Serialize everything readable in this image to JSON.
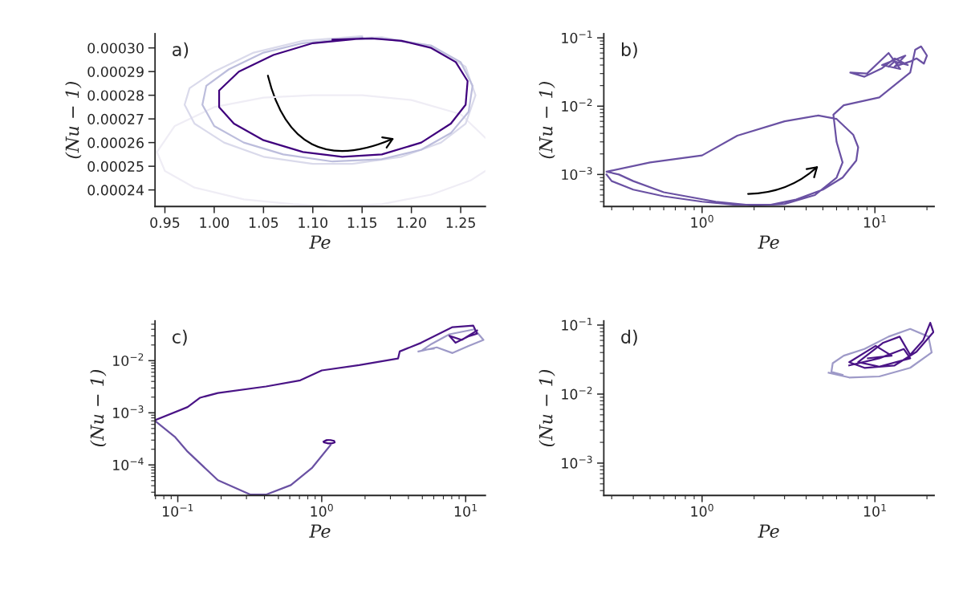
{
  "chart_data": [
    {
      "type": "line",
      "annotations": [
        "a)"
      ],
      "xlabel": "Pe",
      "ylabel": "(Nu − 1)",
      "xlim": [
        0.94,
        1.275
      ],
      "ylim": [
        0.000233,
        0.000306
      ],
      "xticks": [
        {
          "value": 0.95,
          "label": "0.95"
        },
        {
          "value": 1.0,
          "label": "1.00"
        },
        {
          "value": 1.05,
          "label": "1.05"
        },
        {
          "value": 1.1,
          "label": "1.10"
        },
        {
          "value": 1.15,
          "label": "1.15"
        },
        {
          "value": 1.2,
          "label": "1.20"
        },
        {
          "value": 1.25,
          "label": "1.25"
        }
      ],
      "yticks": [
        {
          "value": 0.00024,
          "label": "0.00024"
        },
        {
          "value": 0.00025,
          "label": "0.00025"
        },
        {
          "value": 0.00026,
          "label": "0.00026"
        },
        {
          "value": 0.00027,
          "label": "0.00027"
        },
        {
          "value": 0.00028,
          "label": "0.00028"
        },
        {
          "value": 0.00029,
          "label": "0.00029"
        },
        {
          "value": 0.0003,
          "label": "0.00030"
        }
      ],
      "series": [
        {
          "color": "#efedf5",
          "x": [
            1.275,
            1.25,
            1.2,
            1.15,
            1.1,
            1.05,
            1.0,
            0.96,
            0.942,
            0.95,
            0.98,
            1.03,
            1.08,
            1.12,
            1.17,
            1.22,
            1.26,
            1.275
          ],
          "values": [
            0.000262,
            0.000272,
            0.000278,
            0.00028,
            0.00028,
            0.000279,
            0.000275,
            0.000267,
            0.000256,
            0.000248,
            0.000241,
            0.000236,
            0.000234,
            0.000233,
            0.000234,
            0.000238,
            0.000244,
            0.000248
          ]
        },
        {
          "color": "#dadaeb",
          "x": [
            1.15,
            1.09,
            1.04,
            1.0,
            0.975,
            0.97,
            0.98,
            1.01,
            1.05,
            1.1,
            1.14,
            1.19,
            1.23,
            1.255,
            1.265,
            1.255,
            1.22,
            1.17,
            1.12
          ],
          "values": [
            0.000305,
            0.000303,
            0.000298,
            0.00029,
            0.000283,
            0.000276,
            0.000268,
            0.00026,
            0.000254,
            0.000251,
            0.000251,
            0.000254,
            0.00026,
            0.000268,
            0.00028,
            0.000292,
            0.000301,
            0.0003045,
            0.000304
          ]
        },
        {
          "color": "#bcbddc",
          "x": [
            1.15,
            1.09,
            1.05,
            1.015,
            0.992,
            0.988,
            1.0,
            1.03,
            1.07,
            1.12,
            1.17,
            1.21,
            1.24,
            1.258,
            1.262,
            1.25,
            1.22,
            1.17,
            1.12
          ],
          "values": [
            0.0003045,
            0.000302,
            0.000298,
            0.000291,
            0.000284,
            0.000276,
            0.000267,
            0.00026,
            0.000255,
            0.000252,
            0.000253,
            0.000257,
            0.000264,
            0.000273,
            0.000284,
            0.000294,
            0.000301,
            0.000304,
            0.0003035
          ]
        },
        {
          "color": "#3f007d",
          "x": [
            1.15,
            1.1,
            1.06,
            1.025,
            1.005,
            1.005,
            1.02,
            1.05,
            1.09,
            1.13,
            1.17,
            1.21,
            1.24,
            1.255,
            1.257,
            1.245,
            1.22,
            1.19,
            1.16,
            1.12
          ],
          "values": [
            0.000304,
            0.000302,
            0.000297,
            0.00029,
            0.000282,
            0.000275,
            0.000268,
            0.000261,
            0.000256,
            0.000254,
            0.000255,
            0.00026,
            0.000268,
            0.000276,
            0.000286,
            0.000294,
            0.0003,
            0.000303,
            0.000304,
            0.0003035
          ]
        }
      ]
    },
    {
      "type": "line",
      "annotations": [
        "b)"
      ],
      "xlabel": "Pe",
      "ylabel": "(Nu − 1)",
      "log": "xy",
      "xlim": [
        0.27,
        22
      ],
      "ylim": [
        0.00034,
        0.115
      ],
      "xticks": [
        {
          "value": 1,
          "label": "10$^{0}$"
        },
        {
          "value": 10,
          "label": "10$^{1}$"
        }
      ],
      "yticks": [
        {
          "value": 0.001,
          "label": "10$^{−3}$"
        },
        {
          "value": 0.01,
          "label": "10$^{−2}$"
        },
        {
          "value": 0.1,
          "label": "10$^{−1}$"
        }
      ],
      "series": [
        {
          "color": "#6a51a3",
          "x": [
            0.28,
            0.3,
            0.4,
            0.6,
            1.0,
            1.56,
            2.5,
            3.5,
            5,
            6.5,
            7.8,
            8.0,
            7.5,
            6,
            4.7,
            3,
            1.6,
            1.0,
            0.5,
            0.28,
            0.33,
            0.4,
            0.6,
            1.2,
            2,
            3,
            4.5,
            6,
            6.5,
            6.0,
            5.75,
            6.6,
            10.6,
            16,
            17.1,
            18.5,
            20,
            19.2,
            17.4,
            16,
            13,
            15,
            11,
            14,
            12,
            9,
            7.2,
            8.7,
            11,
            13,
            15.5,
            13,
            12
          ],
          "values": [
            0.001,
            0.0008,
            0.0006,
            0.00048,
            0.0004,
            0.00036,
            0.00036,
            0.00043,
            0.0006,
            0.0009,
            0.0016,
            0.0025,
            0.0038,
            0.0065,
            0.0073,
            0.006,
            0.0037,
            0.0019,
            0.0015,
            0.0011,
            0.001,
            0.0008,
            0.00055,
            0.0004,
            0.00035,
            0.00037,
            0.0005,
            0.0009,
            0.0015,
            0.003,
            0.0075,
            0.0103,
            0.0134,
            0.031,
            0.067,
            0.075,
            0.055,
            0.042,
            0.05,
            0.045,
            0.038,
            0.055,
            0.04,
            0.035,
            0.06,
            0.03,
            0.031,
            0.027,
            0.036,
            0.05,
            0.04,
            0.045,
            0.038
          ]
        }
      ]
    },
    {
      "type": "line",
      "annotations": [
        "c)"
      ],
      "xlabel": "Pe",
      "ylabel": "(Nu − 1)",
      "log": "xy",
      "xlim": [
        0.0695,
        13.7
      ],
      "ylim": [
        2.6e-05,
        0.058
      ],
      "xticks": [
        {
          "value": 0.1,
          "label": "10$^{−1}$"
        },
        {
          "value": 1,
          "label": "10$^{0}$"
        },
        {
          "value": 10,
          "label": "10$^{1}$"
        }
      ],
      "yticks": [
        {
          "value": 0.0001,
          "label": "10$^{−4}$"
        },
        {
          "value": 0.001,
          "label": "10$^{−3}$"
        },
        {
          "value": 0.01,
          "label": "10$^{−2}$"
        }
      ],
      "series": [
        {
          "color": "#9e9ac8",
          "x": [
            4.7,
            6.3,
            8.1,
            10.4,
            13.3,
            11.5,
            7.7,
            5.8,
            5.0,
            6.0
          ],
          "values": [
            0.015,
            0.018,
            0.014,
            0.019,
            0.025,
            0.04,
            0.032,
            0.021,
            0.016,
            0.017
          ]
        },
        {
          "color": "#6a51a3",
          "x": [
            1.15,
            0.86,
            0.61,
            0.41,
            0.32,
            0.19,
            0.117,
            0.096,
            0.075,
            0.07
          ],
          "values": [
            0.00024,
            8.9e-05,
            4.1e-05,
            2.7e-05,
            2.7e-05,
            5.1e-05,
            0.00018,
            0.00034,
            0.00059,
            0.00069
          ]
        },
        {
          "color": "#4a1486",
          "x": [
            0.071,
            0.117,
            0.143,
            0.19,
            0.41,
            0.71,
            1.0,
            1.82,
            3.39,
            3.48,
            4.9,
            8.1,
            11.3,
            12,
            10.4,
            8.5,
            7.7,
            9.4,
            12
          ],
          "values": [
            0.00074,
            0.00129,
            0.00195,
            0.0024,
            0.0032,
            0.0042,
            0.0065,
            0.0082,
            0.011,
            0.015,
            0.022,
            0.044,
            0.047,
            0.033,
            0.029,
            0.022,
            0.03,
            0.025,
            0.038
          ]
        },
        {
          "color": "#3f007d",
          "x": [
            1.03,
            1.08,
            1.15,
            1.22,
            1.23,
            1.18,
            1.1,
            1.04,
            1.05,
            1.1
          ],
          "values": [
            0.00028,
            0.0003,
            0.0003,
            0.00029,
            0.00027,
            0.00026,
            0.00026,
            0.00027,
            0.00029,
            0.0003
          ]
        }
      ]
    },
    {
      "type": "line",
      "annotations": [
        "d)"
      ],
      "xlabel": "Pe",
      "ylabel": "(Nu − 1)",
      "log": "xy",
      "xlim": [
        0.27,
        22
      ],
      "ylim": [
        0.00034,
        0.115
      ],
      "xticks": [
        {
          "value": 1,
          "label": "10$^{0}$"
        },
        {
          "value": 10,
          "label": "10$^{1}$"
        }
      ],
      "yticks": [
        {
          "value": 0.001,
          "label": "10$^{−3}$"
        },
        {
          "value": 0.01,
          "label": "10$^{−2}$"
        },
        {
          "value": 0.1,
          "label": "10$^{−1}$"
        }
      ],
      "series": [
        {
          "color": "#9e9ac8",
          "x": [
            5.4,
            7.1,
            10.6,
            16,
            21.3,
            20.4,
            16,
            12,
            8.7,
            6.6,
            5.7,
            5.6,
            6.5
          ],
          "values": [
            0.0204,
            0.0174,
            0.018,
            0.024,
            0.04,
            0.068,
            0.088,
            0.068,
            0.045,
            0.036,
            0.028,
            0.021,
            0.019
          ]
        },
        {
          "color": "#4a1486",
          "x": [
            7.1,
            10.6,
            14.7,
            16,
            10.6,
            8,
            11.1,
            13.9,
            16,
            19,
            20.9,
            21.8,
            17.4,
            13,
            8.7,
            7.1,
            10.1,
            12.5,
            9.1
          ],
          "values": [
            0.026,
            0.033,
            0.045,
            0.033,
            0.025,
            0.029,
            0.055,
            0.068,
            0.037,
            0.06,
            0.108,
            0.079,
            0.041,
            0.026,
            0.024,
            0.029,
            0.05,
            0.036,
            0.033
          ]
        }
      ]
    }
  ]
}
